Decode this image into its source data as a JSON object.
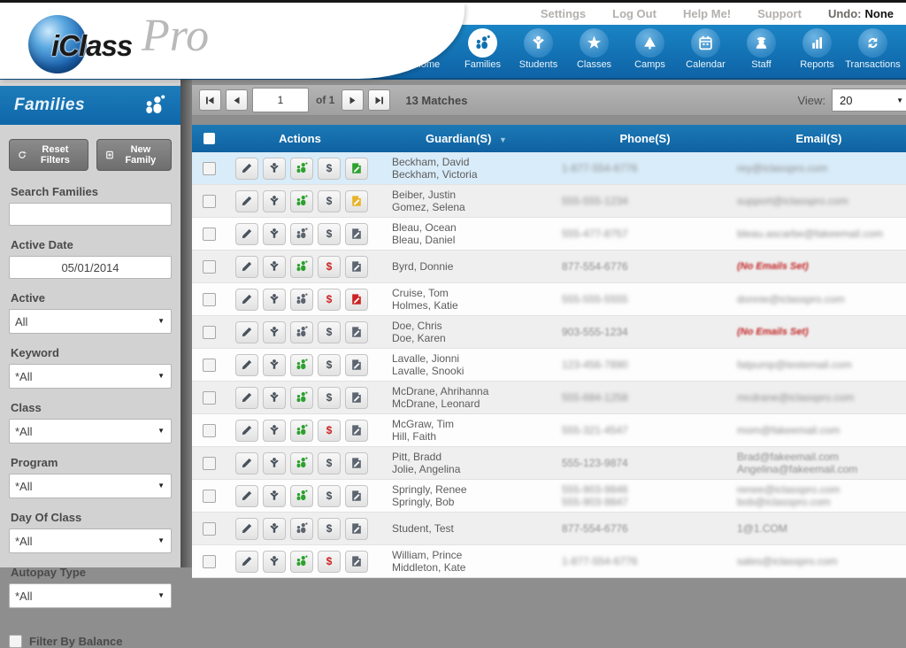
{
  "topbar": {
    "links": [
      "Settings",
      "Log Out",
      "Help Me!",
      "Support"
    ],
    "undo_label": "Undo:",
    "undo_value": "None"
  },
  "logo": {
    "text_iclass": "iClass",
    "text_pro": "Pro"
  },
  "nav": {
    "active": "Families",
    "items": [
      {
        "label": "Home"
      },
      {
        "label": "Families"
      },
      {
        "label": "Students"
      },
      {
        "label": "Classes"
      },
      {
        "label": "Camps"
      },
      {
        "label": "Calendar"
      },
      {
        "label": "Staff"
      },
      {
        "label": "Reports"
      },
      {
        "label": "Transactions"
      }
    ]
  },
  "sidebar": {
    "title": "Families",
    "buttons": {
      "reset": "Reset Filters",
      "new_family": "New Family"
    },
    "search": {
      "label": "Search Families",
      "value": ""
    },
    "active_date": {
      "label": "Active Date",
      "value": "05/01/2014"
    },
    "selects": [
      {
        "label": "Active",
        "value": "All"
      },
      {
        "label": "Keyword",
        "value": "*All"
      },
      {
        "label": "Class",
        "value": "*All"
      },
      {
        "label": "Program",
        "value": "*All"
      },
      {
        "label": "Day Of Class",
        "value": "*All"
      },
      {
        "label": "Autopay Type",
        "value": "*All"
      }
    ],
    "balance_checkbox_label": "Filter By Balance"
  },
  "toolbar": {
    "page_value": "1",
    "of_label": "of 1",
    "matches": "13 Matches",
    "view_label": "View:",
    "view_value": "20"
  },
  "table": {
    "columns": [
      "Actions",
      "Guardian(S)",
      "Phone(S)",
      "Email(S)"
    ],
    "rows": [
      {
        "guardians": [
          "Beckham, David",
          "Beckham, Victoria"
        ],
        "phones": [
          "1-877-554-6776"
        ],
        "emails": [
          "rey@iclasspro.com"
        ],
        "no_email": false,
        "family_icon": "green",
        "dollar_icon": "dark",
        "note_icon": "green",
        "highlighted": true,
        "blur": "heavy"
      },
      {
        "guardians": [
          "Beiber, Justin",
          "Gomez, Selena"
        ],
        "phones": [
          "555-555-1234"
        ],
        "emails": [
          "support@iclasspro.com"
        ],
        "no_email": false,
        "family_icon": "green",
        "dollar_icon": "dark",
        "note_icon": "yellow",
        "highlighted": false,
        "blur": "heavy"
      },
      {
        "guardians": [
          "Bleau, Ocean",
          "Bleau, Daniel"
        ],
        "phones": [
          "555-477-8757"
        ],
        "emails": [
          "bleau.ascarbe@fakeemail.com"
        ],
        "no_email": false,
        "family_icon": "gray",
        "dollar_icon": "dark",
        "note_icon": "gray",
        "highlighted": false,
        "blur": "heavy"
      },
      {
        "guardians": [
          "Byrd, Donnie"
        ],
        "phones": [
          "877-554-6776"
        ],
        "emails": [
          "(No Emails Set)"
        ],
        "no_email": true,
        "family_icon": "green",
        "dollar_icon": "red",
        "note_icon": "gray",
        "highlighted": false,
        "blur": "light"
      },
      {
        "guardians": [
          "Cruise, Tom",
          "Holmes, Katie"
        ],
        "phones": [
          "555-555-5555"
        ],
        "emails": [
          "donnie@iclasspro.com"
        ],
        "no_email": false,
        "family_icon": "gray",
        "dollar_icon": "red",
        "note_icon": "red",
        "highlighted": false,
        "blur": "heavy"
      },
      {
        "guardians": [
          "Doe, Chris",
          "Doe, Karen"
        ],
        "phones": [
          "903-555-1234"
        ],
        "emails": [
          "(No Emails Set)"
        ],
        "no_email": true,
        "family_icon": "gray",
        "dollar_icon": "dark",
        "note_icon": "gray",
        "highlighted": false,
        "blur": "light"
      },
      {
        "guardians": [
          "Lavalle, Jionni",
          "Lavalle, Snooki"
        ],
        "phones": [
          "123-456-7890"
        ],
        "emails": [
          "fatpump@testemail.com"
        ],
        "no_email": false,
        "family_icon": "green",
        "dollar_icon": "dark",
        "note_icon": "gray",
        "highlighted": false,
        "blur": "heavy"
      },
      {
        "guardians": [
          "McDrane, Ahrihanna",
          "McDrane, Leonard"
        ],
        "phones": [
          "555-684-1258"
        ],
        "emails": [
          "mcdrane@iclasspro.com"
        ],
        "no_email": false,
        "family_icon": "green",
        "dollar_icon": "dark",
        "note_icon": "gray",
        "highlighted": false,
        "blur": "heavy"
      },
      {
        "guardians": [
          "McGraw, Tim",
          "Hill, Faith"
        ],
        "phones": [
          "555-321-4547"
        ],
        "emails": [
          "mom@fakeemail.com"
        ],
        "no_email": false,
        "family_icon": "green",
        "dollar_icon": "red",
        "note_icon": "gray",
        "highlighted": false,
        "blur": "heavy"
      },
      {
        "guardians": [
          "Pitt, Bradd",
          "Jolie, Angelina"
        ],
        "phones": [
          "555-123-9874"
        ],
        "emails": [
          "Brad@fakeemail.com",
          "Angelina@fakeemail.com"
        ],
        "no_email": false,
        "family_icon": "green",
        "dollar_icon": "dark",
        "note_icon": "gray",
        "highlighted": false,
        "blur": "light"
      },
      {
        "guardians": [
          "Springly, Renee",
          "Springly, Bob"
        ],
        "phones": [
          "555-903-9846",
          "555-903-9847"
        ],
        "emails": [
          "renee@iclasspro.com",
          "bob@iclasspro.com"
        ],
        "no_email": false,
        "family_icon": "green",
        "dollar_icon": "dark",
        "note_icon": "gray",
        "highlighted": false,
        "blur": "heavy"
      },
      {
        "guardians": [
          "Student, Test"
        ],
        "phones": [
          "877-554-6776"
        ],
        "emails": [
          "1@1.COM"
        ],
        "no_email": false,
        "family_icon": "gray",
        "dollar_icon": "dark",
        "note_icon": "gray",
        "highlighted": false,
        "blur": "light"
      },
      {
        "guardians": [
          "William, Prince",
          "Middleton, Kate"
        ],
        "phones": [
          "1-877-554-6776"
        ],
        "emails": [
          "sales@iclasspro.com"
        ],
        "no_email": false,
        "family_icon": "green",
        "dollar_icon": "red",
        "note_icon": "gray",
        "highlighted": false,
        "blur": "heavy"
      }
    ]
  },
  "colors": {
    "nav_blue": "#1173b4",
    "table_header_blue": "#13629f",
    "action_green": "#2da12e",
    "alert_red": "#cc2222",
    "note_yellow": "#e8b32a",
    "sidebar_gray": "#d2d2d2",
    "row_highlight": "#d9ecf9"
  }
}
